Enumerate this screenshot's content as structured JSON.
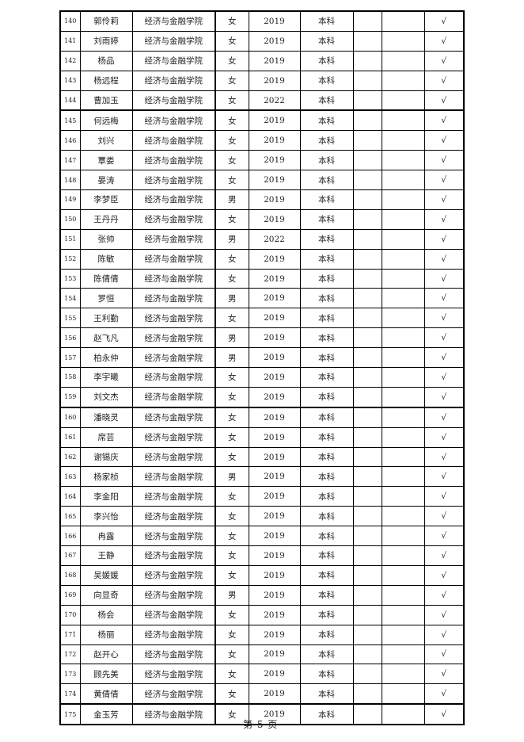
{
  "table": {
    "rows": [
      [
        "140",
        "郭伶莉",
        "经济与金融学院",
        "女",
        "2019",
        "本科",
        "",
        "",
        "√"
      ],
      [
        "141",
        "刘雨婷",
        "经济与金融学院",
        "女",
        "2019",
        "本科",
        "",
        "",
        "√"
      ],
      [
        "142",
        "杨品",
        "经济与金融学院",
        "女",
        "2019",
        "本科",
        "",
        "",
        "√"
      ],
      [
        "143",
        "杨远程",
        "经济与金融学院",
        "女",
        "2019",
        "本科",
        "",
        "",
        "√"
      ],
      [
        "144",
        "曹加玉",
        "经济与金融学院",
        "女",
        "2022",
        "本科",
        "",
        "",
        "√"
      ],
      [
        "145",
        "何远梅",
        "经济与金融学院",
        "女",
        "2019",
        "本科",
        "",
        "",
        "√"
      ],
      [
        "146",
        "刘兴",
        "经济与金融学院",
        "女",
        "2019",
        "本科",
        "",
        "",
        "√"
      ],
      [
        "147",
        "覃娄",
        "经济与金融学院",
        "女",
        "2019",
        "本科",
        "",
        "",
        "√"
      ],
      [
        "148",
        "晏涛",
        "经济与金融学院",
        "女",
        "2019",
        "本科",
        "",
        "",
        "√"
      ],
      [
        "149",
        "李梦臣",
        "经济与金融学院",
        "男",
        "2019",
        "本科",
        "",
        "",
        "√"
      ],
      [
        "150",
        "王丹丹",
        "经济与金融学院",
        "女",
        "2019",
        "本科",
        "",
        "",
        "√"
      ],
      [
        "151",
        "张帅",
        "经济与金融学院",
        "男",
        "2022",
        "本科",
        "",
        "",
        "√"
      ],
      [
        "152",
        "陈敏",
        "经济与金融学院",
        "女",
        "2019",
        "本科",
        "",
        "",
        "√"
      ],
      [
        "153",
        "陈倩倩",
        "经济与金融学院",
        "女",
        "2019",
        "本科",
        "",
        "",
        "√"
      ],
      [
        "154",
        "罗恒",
        "经济与金融学院",
        "男",
        "2019",
        "本科",
        "",
        "",
        "√"
      ],
      [
        "155",
        "王利勤",
        "经济与金融学院",
        "女",
        "2019",
        "本科",
        "",
        "",
        "√"
      ],
      [
        "156",
        "赵飞凡",
        "经济与金融学院",
        "男",
        "2019",
        "本科",
        "",
        "",
        "√"
      ],
      [
        "157",
        "柏永仲",
        "经济与金融学院",
        "男",
        "2019",
        "本科",
        "",
        "",
        "√"
      ],
      [
        "158",
        "李宇曦",
        "经济与金融学院",
        "女",
        "2019",
        "本科",
        "",
        "",
        "√"
      ],
      [
        "159",
        "刘文杰",
        "经济与金融学院",
        "女",
        "2019",
        "本科",
        "",
        "",
        "√"
      ],
      [
        "160",
        "潘晓灵",
        "经济与金融学院",
        "女",
        "2019",
        "本科",
        "",
        "",
        "√"
      ],
      [
        "161",
        "席芸",
        "经济与金融学院",
        "女",
        "2019",
        "本科",
        "",
        "",
        "√"
      ],
      [
        "162",
        "谢锡庆",
        "经济与金融学院",
        "女",
        "2019",
        "本科",
        "",
        "",
        "√"
      ],
      [
        "163",
        "杨家桢",
        "经济与金融学院",
        "男",
        "2019",
        "本科",
        "",
        "",
        "√"
      ],
      [
        "164",
        "李金阳",
        "经济与金融学院",
        "女",
        "2019",
        "本科",
        "",
        "",
        "√"
      ],
      [
        "165",
        "李兴怡",
        "经济与金融学院",
        "女",
        "2019",
        "本科",
        "",
        "",
        "√"
      ],
      [
        "166",
        "冉露",
        "经济与金融学院",
        "女",
        "2019",
        "本科",
        "",
        "",
        "√"
      ],
      [
        "167",
        "王静",
        "经济与金融学院",
        "女",
        "2019",
        "本科",
        "",
        "",
        "√"
      ],
      [
        "168",
        "吴媛媛",
        "经济与金融学院",
        "女",
        "2019",
        "本科",
        "",
        "",
        "√"
      ],
      [
        "169",
        "向显奇",
        "经济与金融学院",
        "男",
        "2019",
        "本科",
        "",
        "",
        "√"
      ],
      [
        "170",
        "杨会",
        "经济与金融学院",
        "女",
        "2019",
        "本科",
        "",
        "",
        "√"
      ],
      [
        "171",
        "杨丽",
        "经济与金融学院",
        "女",
        "2019",
        "本科",
        "",
        "",
        "√"
      ],
      [
        "172",
        "赵开心",
        "经济与金融学院",
        "女",
        "2019",
        "本科",
        "",
        "",
        "√"
      ],
      [
        "173",
        "顾先美",
        "经济与金融学院",
        "女",
        "2019",
        "本科",
        "",
        "",
        "√"
      ],
      [
        "174",
        "黄倩倩",
        "经济与金融学院",
        "女",
        "2019",
        "本科",
        "",
        "",
        "√"
      ],
      [
        "175",
        "金玉芳",
        "经济与金融学院",
        "女",
        "2019",
        "本科",
        "",
        "",
        "√"
      ]
    ]
  },
  "footer": {
    "page_label": "第 5 页"
  }
}
